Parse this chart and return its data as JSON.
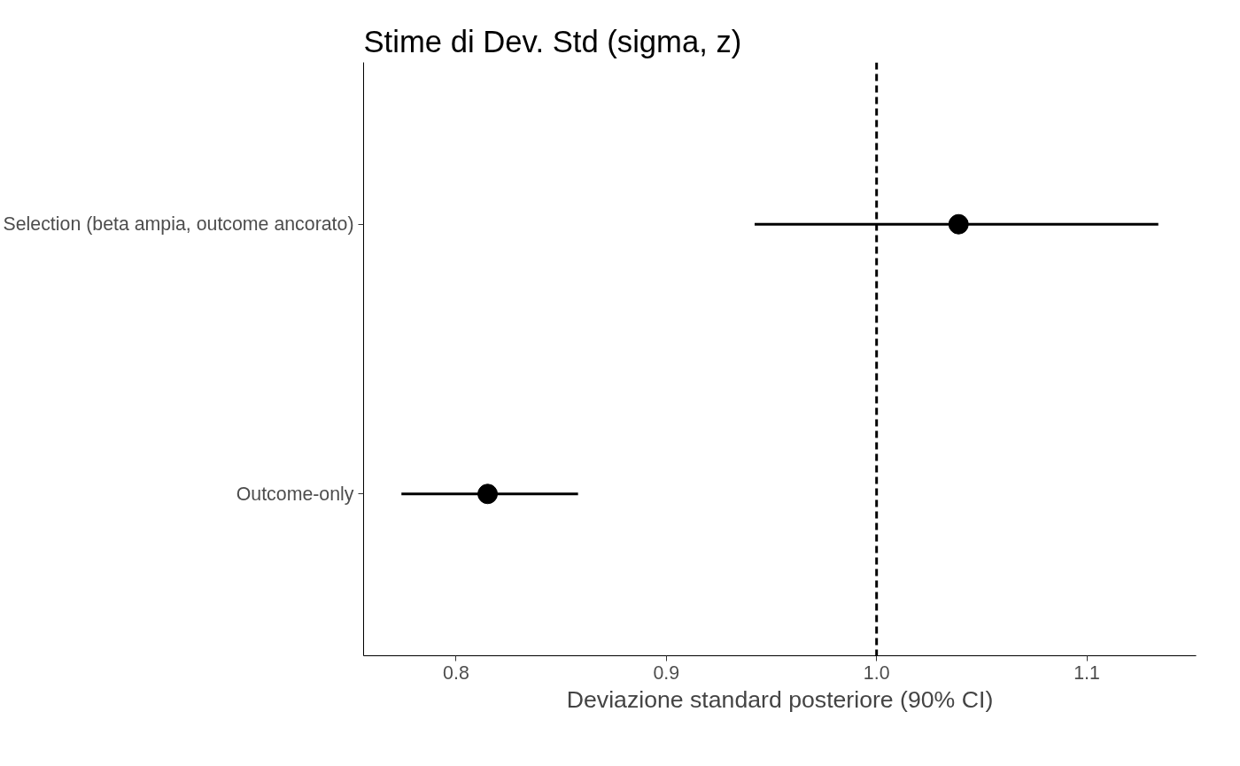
{
  "chart_data": {
    "type": "scatter",
    "orientation": "horizontal",
    "title": "Stime di Dev. Std (sigma, z)",
    "xlabel": "Deviazione standard posteriore (90% CI)",
    "categories": [
      "Selection (beta ampia, outcome ancorato)",
      "Outcome-only"
    ],
    "values": [
      1.039,
      0.815
    ],
    "errors": [
      [
        0.942,
        1.134
      ],
      [
        0.774,
        0.858
      ]
    ],
    "color": "#000000",
    "marker": "circle",
    "xlim": [
      0.756,
      1.152
    ],
    "xticks": [
      {
        "value": 0.8,
        "label": "0.8"
      },
      {
        "value": 0.9,
        "label": "0.9"
      },
      {
        "value": 1.0,
        "label": "1.0"
      },
      {
        "value": 1.1,
        "label": "1.1"
      }
    ],
    "ref_lines": [
      {
        "axis": "x",
        "value": 1.0,
        "label": null,
        "color": "#000000",
        "line_style": "dashed"
      }
    ],
    "grid": false
  }
}
